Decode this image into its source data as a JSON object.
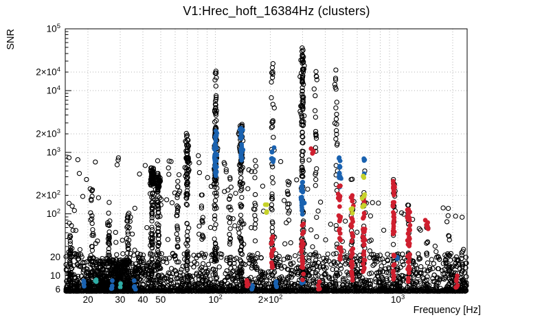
{
  "chart_data": {
    "type": "scatter",
    "title": "V1:Hrec_hoft_16384Hz (clusters)",
    "xlabel": "Frequency [Hz]",
    "ylabel": "SNR",
    "x_scale": "log",
    "y_scale": "log",
    "xlim": [
      15,
      2400
    ],
    "ylim": [
      5.5,
      100000
    ],
    "x_ticks": [
      {
        "v": 20,
        "t": "20"
      },
      {
        "v": 30,
        "t": "30"
      },
      {
        "v": 40,
        "t": "40"
      },
      {
        "v": 50,
        "t": "50"
      },
      {
        "v": 100,
        "m": "10",
        "e": "2"
      },
      {
        "v": 200,
        "m": "2×10",
        "e": "2"
      },
      {
        "v": 1000,
        "m": "10",
        "e": "3"
      }
    ],
    "y_ticks": [
      {
        "v": 6,
        "t": "6"
      },
      {
        "v": 10,
        "t": "10"
      },
      {
        "v": 20,
        "t": "20"
      },
      {
        "v": 100,
        "m": "10",
        "e": "2"
      },
      {
        "v": 200,
        "m": "2×10",
        "e": "2"
      },
      {
        "v": 1000,
        "m": "10",
        "e": "3"
      },
      {
        "v": 2000,
        "m": "2×10",
        "e": "3"
      },
      {
        "v": 10000,
        "m": "10",
        "e": "4"
      },
      {
        "v": 20000,
        "m": "2×10",
        "e": "4"
      },
      {
        "v": 100000,
        "m": "10",
        "e": "5"
      }
    ],
    "grid": {
      "style": "dotted",
      "color": "#b3b3b3",
      "x_values": [
        20,
        30,
        40,
        50,
        60,
        70,
        80,
        90,
        100,
        200,
        300,
        400,
        500,
        600,
        700,
        800,
        900,
        1000,
        2000
      ],
      "y_values": [
        6,
        10,
        20,
        100,
        200,
        1000,
        2000,
        10000,
        20000,
        100000
      ]
    },
    "colors": {
      "black": "#000000",
      "blue": "#1a62b0",
      "red": "#cf1f2f",
      "yellow_green": "#c6d22b",
      "cyan": "#2fada6"
    },
    "marker": {
      "open_radius": 3.1,
      "open_stroke": 1.1,
      "filled_radius": 3.4
    },
    "seed": 20240102,
    "background": [
      {
        "name": "noise-floor",
        "n": 2400,
        "f_range": [
          15,
          2400
        ],
        "log_snr_base": 0.74,
        "log_snr_span": 0.62,
        "power": 3.2
      },
      {
        "name": "low-freq-hump",
        "n": 550,
        "f_log_center": 1.447,
        "f_log_sigma": 0.085,
        "log_snr_base": 0.74,
        "log_snr_span": 0.52,
        "power": 1.8
      },
      {
        "name": "sparse-low",
        "n": 110,
        "f_range": [
          15,
          330
        ],
        "snr_range": [
          22,
          900
        ]
      },
      {
        "name": "sparse-high",
        "n": 45,
        "f_range": [
          330,
          2300
        ],
        "snr_range": [
          15,
          160
        ]
      }
    ],
    "clusters": [
      {
        "f": 16,
        "n": 45,
        "s": [
          6,
          45
        ],
        "c": "black"
      },
      {
        "f": 21,
        "n": 30,
        "s": [
          6.5,
          250
        ],
        "c": "black"
      },
      {
        "f": 26,
        "n": 30,
        "s": [
          7,
          90
        ],
        "c": "black"
      },
      {
        "f": 33,
        "n": 35,
        "s": [
          7,
          120
        ],
        "c": "black"
      },
      {
        "f": 45,
        "n": 60,
        "s": [
          7,
          550
        ],
        "c": "black"
      },
      {
        "f": 45,
        "n": 45,
        "s": [
          280,
          560
        ],
        "c": "black",
        "js": 0.005
      },
      {
        "f": 48.5,
        "n": 50,
        "s": [
          7,
          480
        ],
        "c": "black"
      },
      {
        "f": 48.5,
        "n": 32,
        "s": [
          230,
          470
        ],
        "c": "black",
        "js": 0.005
      },
      {
        "f": 62,
        "n": 22,
        "s": [
          8,
          300
        ],
        "c": "black"
      },
      {
        "f": 70,
        "n": 50,
        "s": [
          8,
          2100
        ],
        "c": "black"
      },
      {
        "f": 70,
        "n": 38,
        "s": [
          300,
          1600
        ],
        "c": "black",
        "js": 0.005
      },
      {
        "f": 85,
        "n": 18,
        "s": [
          8,
          250
        ],
        "c": "black"
      },
      {
        "f": 100,
        "n": 80,
        "s": [
          8,
          21000
        ],
        "c": "black"
      },
      {
        "f": 100,
        "n": 55,
        "s": [
          250,
          2600
        ],
        "c": "black",
        "js": 0.005
      },
      {
        "f": 120,
        "n": 18,
        "s": [
          8,
          420
        ],
        "c": "black"
      },
      {
        "f": 138,
        "n": 60,
        "s": [
          8,
          3200
        ],
        "c": "black"
      },
      {
        "f": 138,
        "n": 40,
        "s": [
          450,
          2700
        ],
        "c": "black",
        "js": 0.005
      },
      {
        "f": 165,
        "n": 18,
        "s": [
          8,
          650
        ],
        "c": "black"
      },
      {
        "f": 205,
        "n": 40,
        "s": [
          8,
          28000
        ],
        "c": "black"
      },
      {
        "f": 250,
        "n": 16,
        "s": [
          8,
          500
        ],
        "c": "black"
      },
      {
        "f": 300,
        "n": 80,
        "s": [
          10,
          52000
        ],
        "c": "black"
      },
      {
        "f": 300,
        "n": 32,
        "s": [
          2600,
          36000
        ],
        "c": "black",
        "js": 0.005
      },
      {
        "f": 355,
        "n": 30,
        "s": [
          10,
          21000
        ],
        "c": "black"
      },
      {
        "f": 460,
        "n": 22,
        "s": [
          10,
          9000
        ],
        "c": "black"
      },
      {
        "f": 460,
        "n": 6,
        "s": [
          9000,
          22000
        ],
        "c": "black"
      },
      {
        "f": 560,
        "n": 14,
        "s": [
          8,
          400
        ],
        "c": "black"
      },
      {
        "f": 650,
        "n": 14,
        "s": [
          8,
          600
        ],
        "c": "black"
      },
      {
        "f": 950,
        "n": 16,
        "s": [
          8,
          380
        ],
        "c": "black"
      },
      {
        "f": 1150,
        "n": 12,
        "s": [
          7,
          150
        ],
        "c": "black"
      },
      {
        "f": 1450,
        "n": 10,
        "s": [
          7,
          70
        ],
        "c": "black"
      },
      {
        "f": 1920,
        "n": 10,
        "s": [
          6.5,
          45
        ],
        "c": "black"
      },
      {
        "f": 2250,
        "n": 8,
        "s": [
          6,
          26
        ],
        "c": "black"
      },
      {
        "f": 100,
        "n": 40,
        "s": [
          350,
          2300
        ],
        "c": "blue"
      },
      {
        "f": 138,
        "n": 22,
        "s": [
          700,
          2700
        ],
        "c": "blue"
      },
      {
        "f": 205,
        "n": 7,
        "s": [
          650,
          1300
        ],
        "c": "blue"
      },
      {
        "f": 300,
        "n": 26,
        "s": [
          90,
          330
        ],
        "c": "blue"
      },
      {
        "f": 480,
        "n": 14,
        "s": [
          260,
          900
        ],
        "c": "blue"
      },
      {
        "f": 650,
        "n": 5,
        "s": [
          380,
          850
        ],
        "c": "blue"
      },
      {
        "f": 19,
        "n": 4,
        "s": [
          6,
          9
        ],
        "c": "blue"
      },
      {
        "f": 27,
        "n": 4,
        "s": [
          6,
          8.5
        ],
        "c": "blue"
      },
      {
        "f": 36,
        "n": 5,
        "s": [
          6,
          9.5
        ],
        "c": "blue"
      },
      {
        "f": 160,
        "n": 3,
        "s": [
          6,
          8
        ],
        "c": "blue"
      },
      {
        "f": 215,
        "n": 4,
        "s": [
          6,
          9
        ],
        "c": "blue"
      },
      {
        "f": 300,
        "n": 3,
        "s": [
          6.5,
          9
        ],
        "c": "blue"
      },
      {
        "f": 1000,
        "n": 2,
        "s": [
          14,
          22
        ],
        "c": "blue"
      },
      {
        "f": 205,
        "n": 16,
        "s": [
          12,
          45
        ],
        "c": "red"
      },
      {
        "f": 300,
        "n": 22,
        "s": [
          8,
          70
        ],
        "c": "red"
      },
      {
        "f": 340,
        "n": 4,
        "s": [
          800,
          1150
        ],
        "c": "red"
      },
      {
        "f": 480,
        "n": 26,
        "s": [
          18,
          300
        ],
        "c": "red"
      },
      {
        "f": 560,
        "n": 30,
        "s": [
          8,
          200
        ],
        "c": "red"
      },
      {
        "f": 650,
        "n": 30,
        "s": [
          10,
          260
        ],
        "c": "red"
      },
      {
        "f": 950,
        "n": 40,
        "s": [
          8,
          360
        ],
        "c": "red"
      },
      {
        "f": 1150,
        "n": 40,
        "s": [
          8,
          120
        ],
        "c": "red"
      },
      {
        "f": 1450,
        "n": 8,
        "s": [
          55,
          100
        ],
        "c": "red"
      },
      {
        "f": 150,
        "n": 5,
        "s": [
          6,
          9
        ],
        "c": "red"
      },
      {
        "f": 2100,
        "n": 6,
        "s": [
          6,
          10
        ],
        "c": "red"
      },
      {
        "f": 370,
        "n": 4,
        "s": [
          6,
          9
        ],
        "c": "red"
      },
      {
        "f": 190,
        "n": 4,
        "s": [
          100,
          150
        ],
        "c": "yellow_green"
      },
      {
        "f": 650,
        "n": 7,
        "s": [
          130,
          220
        ],
        "c": "yellow_green"
      },
      {
        "f": 650,
        "n": 2,
        "s": [
          380,
          430
        ],
        "c": "yellow_green"
      },
      {
        "f": 560,
        "n": 3,
        "s": [
          100,
          135
        ],
        "c": "yellow_green"
      },
      {
        "f": 22,
        "n": 3,
        "s": [
          7.5,
          9.5
        ],
        "c": "cyan"
      },
      {
        "f": 30,
        "n": 2,
        "s": [
          6.5,
          7.5
        ],
        "c": "cyan"
      }
    ]
  }
}
